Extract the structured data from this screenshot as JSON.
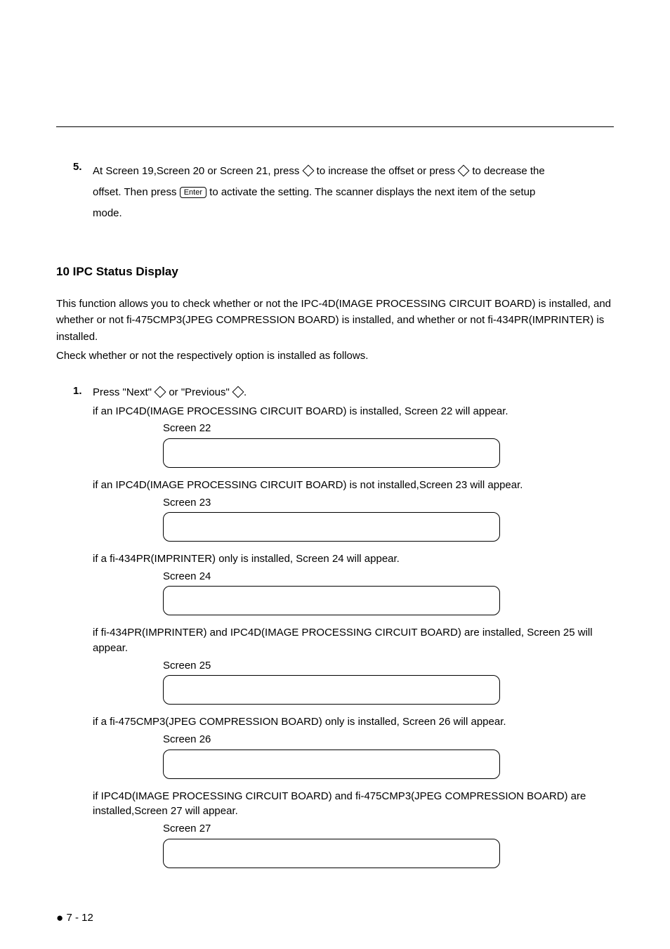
{
  "text_color": "#000000",
  "bg_color": "#ffffff",
  "border_color": "#000000",
  "step5": {
    "number": "5.",
    "line1_a": "At Screen 19,Screen 20 or Screen 21, press ",
    "line1_b": " to increase the offset or press ",
    "line1_c": " to decrease the",
    "line2_a": "offset. Then press ",
    "enter": "Enter",
    "line2_b": " to activate the setting. The scanner displays the next item of the setup",
    "line3": "mode."
  },
  "section10": {
    "heading": "10  IPC Status Display",
    "p1": "This function allows you to check whether or not the IPC-4D(IMAGE PROCESSING CIRCUIT BOARD) is installed, and whether or not fi-475CMP3(JPEG COMPRESSION BOARD) is installed, and whether or not fi-434PR(IMPRINTER) is installed.",
    "p2": "Check whether or not the respectively option is installed as follows."
  },
  "step1": {
    "number": "1.",
    "press_a": "Press \"Next\" ",
    "press_b": " or \"Previous\" ",
    "press_c": ".",
    "cond22": "if an IPC4D(IMAGE PROCESSING CIRCUIT BOARD) is installed, Screen 22 will appear.",
    "label22": "Screen 22",
    "cond23": "if an IPC4D(IMAGE PROCESSING CIRCUIT BOARD) is not installed,Screen 23 will appear.",
    "label23": "Screen 23",
    "cond24": "if a fi-434PR(IMPRINTER) only is installed, Screen 24 will appear.",
    "label24": "Screen 24",
    "cond25": "if fi-434PR(IMPRINTER) and IPC4D(IMAGE PROCESSING CIRCUIT BOARD) are installed, Screen 25 will appear.",
    "label25": "Screen 25",
    "cond26": "if a fi-475CMP3(JPEG COMPRESSION BOARD) only is installed, Screen 26 will appear.",
    "label26": "Screen 26",
    "cond27": "if IPC4D(IMAGE PROCESSING CIRCUIT BOARD) and fi-475CMP3(JPEG COMPRESSION BOARD) are installed,Screen 27 will appear.",
    "label27": "Screen 27"
  },
  "footer": {
    "page": " 7 - 12"
  }
}
